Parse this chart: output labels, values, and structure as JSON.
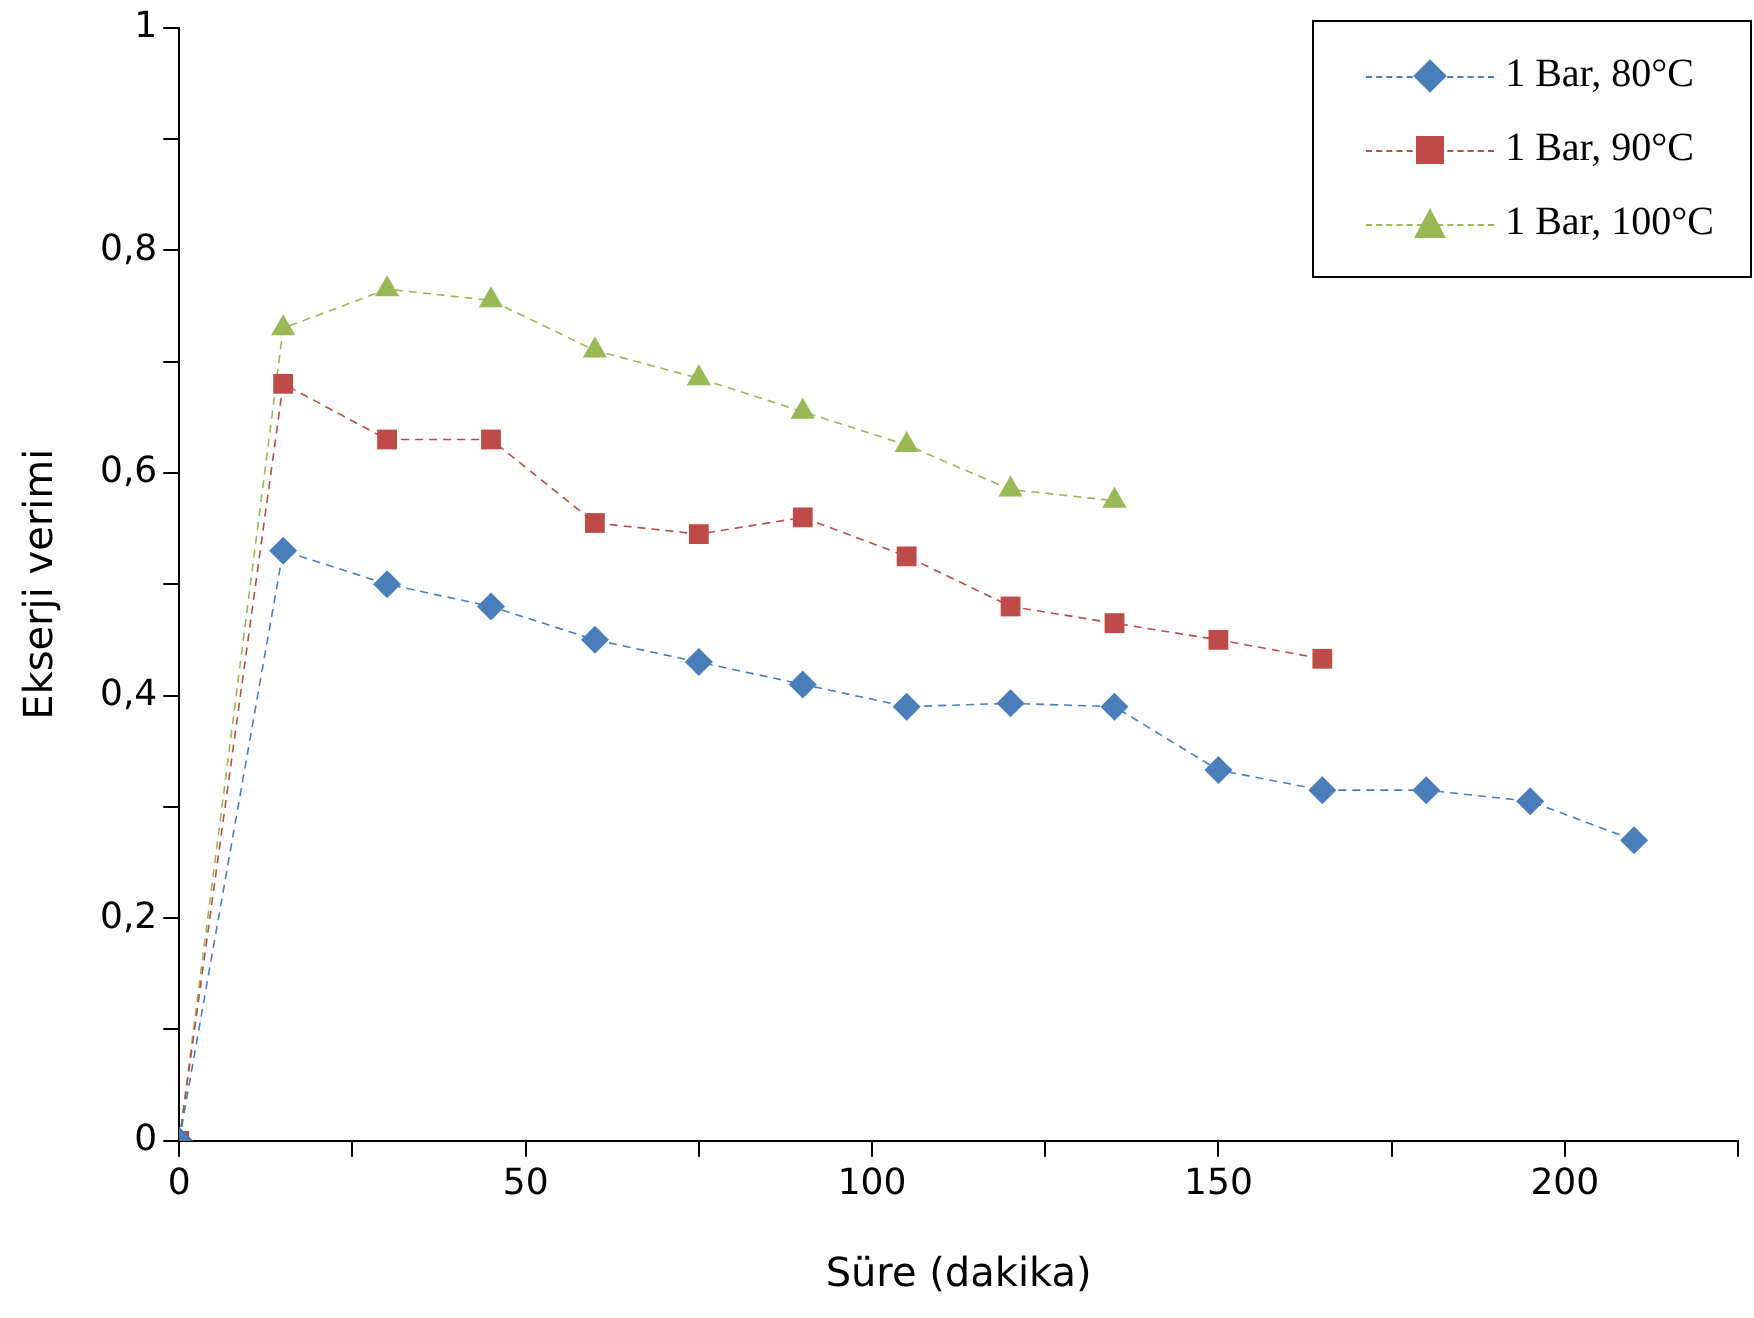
{
  "chart_data": {
    "type": "line",
    "xlabel": "Süre (dakika)",
    "ylabel": "Ekserji verimi",
    "xlim": [
      0,
      225
    ],
    "xticks": [
      0,
      {
        "value": 25,
        "label": null
      },
      50,
      {
        "value": 75,
        "label": null
      },
      100,
      {
        "value": 125,
        "label": null
      },
      150,
      {
        "value": 175,
        "label": null
      },
      200,
      {
        "value": 225,
        "label": null
      }
    ],
    "ylim": [
      0,
      1
    ],
    "yticks": [
      0,
      {
        "value": 0.1,
        "label": null
      },
      {
        "value": 0.2,
        "label": "0,2"
      },
      {
        "value": 0.3,
        "label": null
      },
      {
        "value": 0.4,
        "label": "0,4"
      },
      {
        "value": 0.5,
        "label": null
      },
      {
        "value": 0.6,
        "label": "0,6"
      },
      {
        "value": 0.7,
        "label": null
      },
      {
        "value": 0.8,
        "label": "0,8"
      },
      {
        "value": 0.9,
        "label": null
      },
      1
    ],
    "grid": false,
    "legend": "top right",
    "line_style": "dashed",
    "series": [
      {
        "name": "1 Bar, 80°C",
        "color": "#4a7ebb",
        "marker": "diamond",
        "x": [
          0,
          15,
          30,
          45,
          60,
          75,
          90,
          105,
          120,
          135,
          150,
          165,
          180,
          195,
          210
        ],
        "values": [
          0,
          0.53,
          0.5,
          0.48,
          0.45,
          0.43,
          0.41,
          0.39,
          0.393,
          0.39,
          0.333,
          0.315,
          0.315,
          0.305,
          0.27
        ]
      },
      {
        "name": "1 Bar, 90°C",
        "color": "#be4b48",
        "marker": "square",
        "x": [
          0,
          15,
          30,
          45,
          60,
          75,
          90,
          105,
          120,
          135,
          150,
          165
        ],
        "values": [
          0,
          0.68,
          0.63,
          0.63,
          0.555,
          0.545,
          0.56,
          0.525,
          0.48,
          0.465,
          0.45,
          0.433
        ]
      },
      {
        "name": "1 Bar, 100°C",
        "color": "#98b954",
        "marker": "triangle",
        "x": [
          0,
          15,
          30,
          45,
          60,
          75,
          90,
          105,
          120,
          135
        ],
        "values": [
          0,
          0.73,
          0.765,
          0.755,
          0.71,
          0.685,
          0.655,
          0.625,
          0.585,
          0.575
        ]
      }
    ]
  }
}
